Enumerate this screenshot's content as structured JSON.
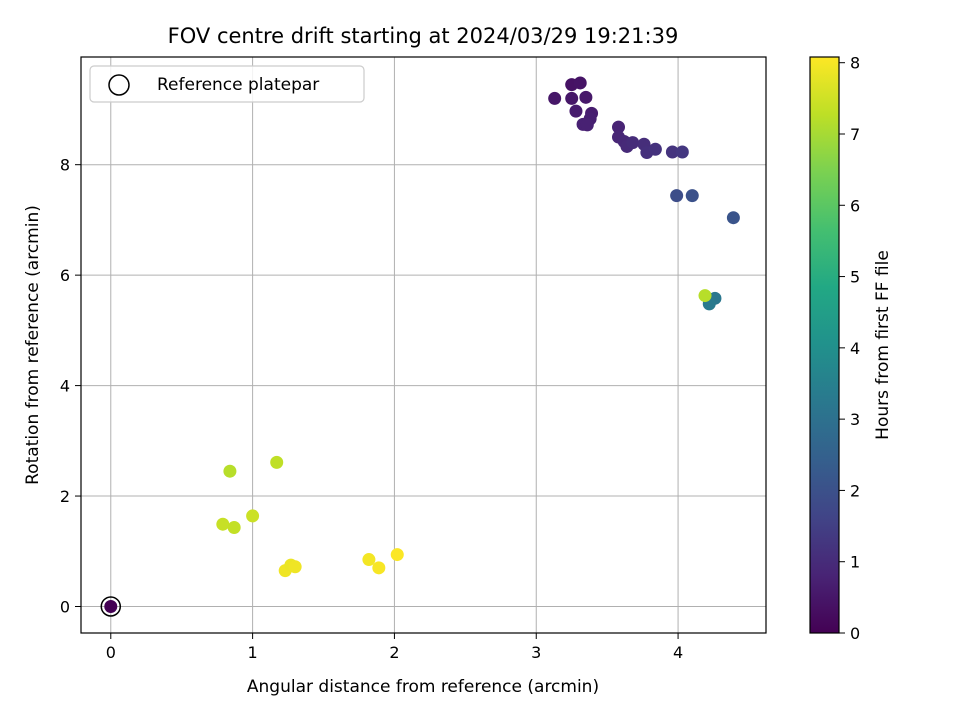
{
  "chart_data": {
    "type": "scatter",
    "title": "FOV centre drift starting at 2024/03/29 19:21:39",
    "xlabel": "Angular distance from reference (arcmin)",
    "ylabel": "Rotation from reference (arcmin)",
    "xlim": [
      -0.21,
      4.62
    ],
    "ylim": [
      -0.48,
      9.95
    ],
    "xticks": [
      0,
      1,
      2,
      3,
      4
    ],
    "yticks": [
      0,
      2,
      4,
      6,
      8
    ],
    "grid": true,
    "legend": {
      "placement": "top-left",
      "entries": [
        "Reference platepar"
      ]
    },
    "reference_point": {
      "x": 0,
      "y": 0,
      "label": "Reference platepar"
    },
    "colorbar": {
      "label": "Hours from first FF file",
      "colormap": "viridis",
      "range": [
        0,
        8.08
      ],
      "ticks": [
        0,
        1,
        2,
        3,
        4,
        5,
        6,
        7,
        8
      ]
    },
    "points": [
      {
        "x": 0.0,
        "y": 0.0,
        "c": 0.0
      },
      {
        "x": 3.13,
        "y": 9.2,
        "c": 0.5
      },
      {
        "x": 3.25,
        "y": 9.45,
        "c": 0.4
      },
      {
        "x": 3.31,
        "y": 9.48,
        "c": 0.45
      },
      {
        "x": 3.25,
        "y": 9.2,
        "c": 0.5
      },
      {
        "x": 3.35,
        "y": 9.22,
        "c": 0.55
      },
      {
        "x": 3.28,
        "y": 8.97,
        "c": 0.6
      },
      {
        "x": 3.39,
        "y": 8.93,
        "c": 0.65
      },
      {
        "x": 3.38,
        "y": 8.83,
        "c": 0.7
      },
      {
        "x": 3.33,
        "y": 8.73,
        "c": 0.75
      },
      {
        "x": 3.36,
        "y": 8.72,
        "c": 0.75
      },
      {
        "x": 3.58,
        "y": 8.68,
        "c": 0.8
      },
      {
        "x": 3.58,
        "y": 8.5,
        "c": 0.85
      },
      {
        "x": 3.62,
        "y": 8.42,
        "c": 0.9
      },
      {
        "x": 3.64,
        "y": 8.33,
        "c": 0.95
      },
      {
        "x": 3.68,
        "y": 8.4,
        "c": 1.0
      },
      {
        "x": 3.76,
        "y": 8.37,
        "c": 1.05
      },
      {
        "x": 3.78,
        "y": 8.22,
        "c": 1.1
      },
      {
        "x": 3.84,
        "y": 8.28,
        "c": 1.15
      },
      {
        "x": 3.96,
        "y": 8.23,
        "c": 1.2
      },
      {
        "x": 4.03,
        "y": 8.23,
        "c": 1.3
      },
      {
        "x": 3.99,
        "y": 7.44,
        "c": 1.9
      },
      {
        "x": 4.1,
        "y": 7.44,
        "c": 2.0
      },
      {
        "x": 4.39,
        "y": 7.04,
        "c": 2.1
      },
      {
        "x": 4.26,
        "y": 5.58,
        "c": 3.2
      },
      {
        "x": 4.22,
        "y": 5.48,
        "c": 3.3
      },
      {
        "x": 4.19,
        "y": 5.63,
        "c": 7.2
      },
      {
        "x": 0.84,
        "y": 2.45,
        "c": 7.2
      },
      {
        "x": 1.17,
        "y": 2.61,
        "c": 7.3
      },
      {
        "x": 0.79,
        "y": 1.49,
        "c": 7.4
      },
      {
        "x": 0.87,
        "y": 1.43,
        "c": 7.35
      },
      {
        "x": 1.0,
        "y": 1.64,
        "c": 7.45
      },
      {
        "x": 1.23,
        "y": 0.65,
        "c": 7.9
      },
      {
        "x": 1.27,
        "y": 0.75,
        "c": 7.85
      },
      {
        "x": 1.3,
        "y": 0.72,
        "c": 7.9
      },
      {
        "x": 1.82,
        "y": 0.85,
        "c": 7.95
      },
      {
        "x": 1.89,
        "y": 0.7,
        "c": 8.0
      },
      {
        "x": 2.02,
        "y": 0.94,
        "c": 8.05
      }
    ]
  }
}
